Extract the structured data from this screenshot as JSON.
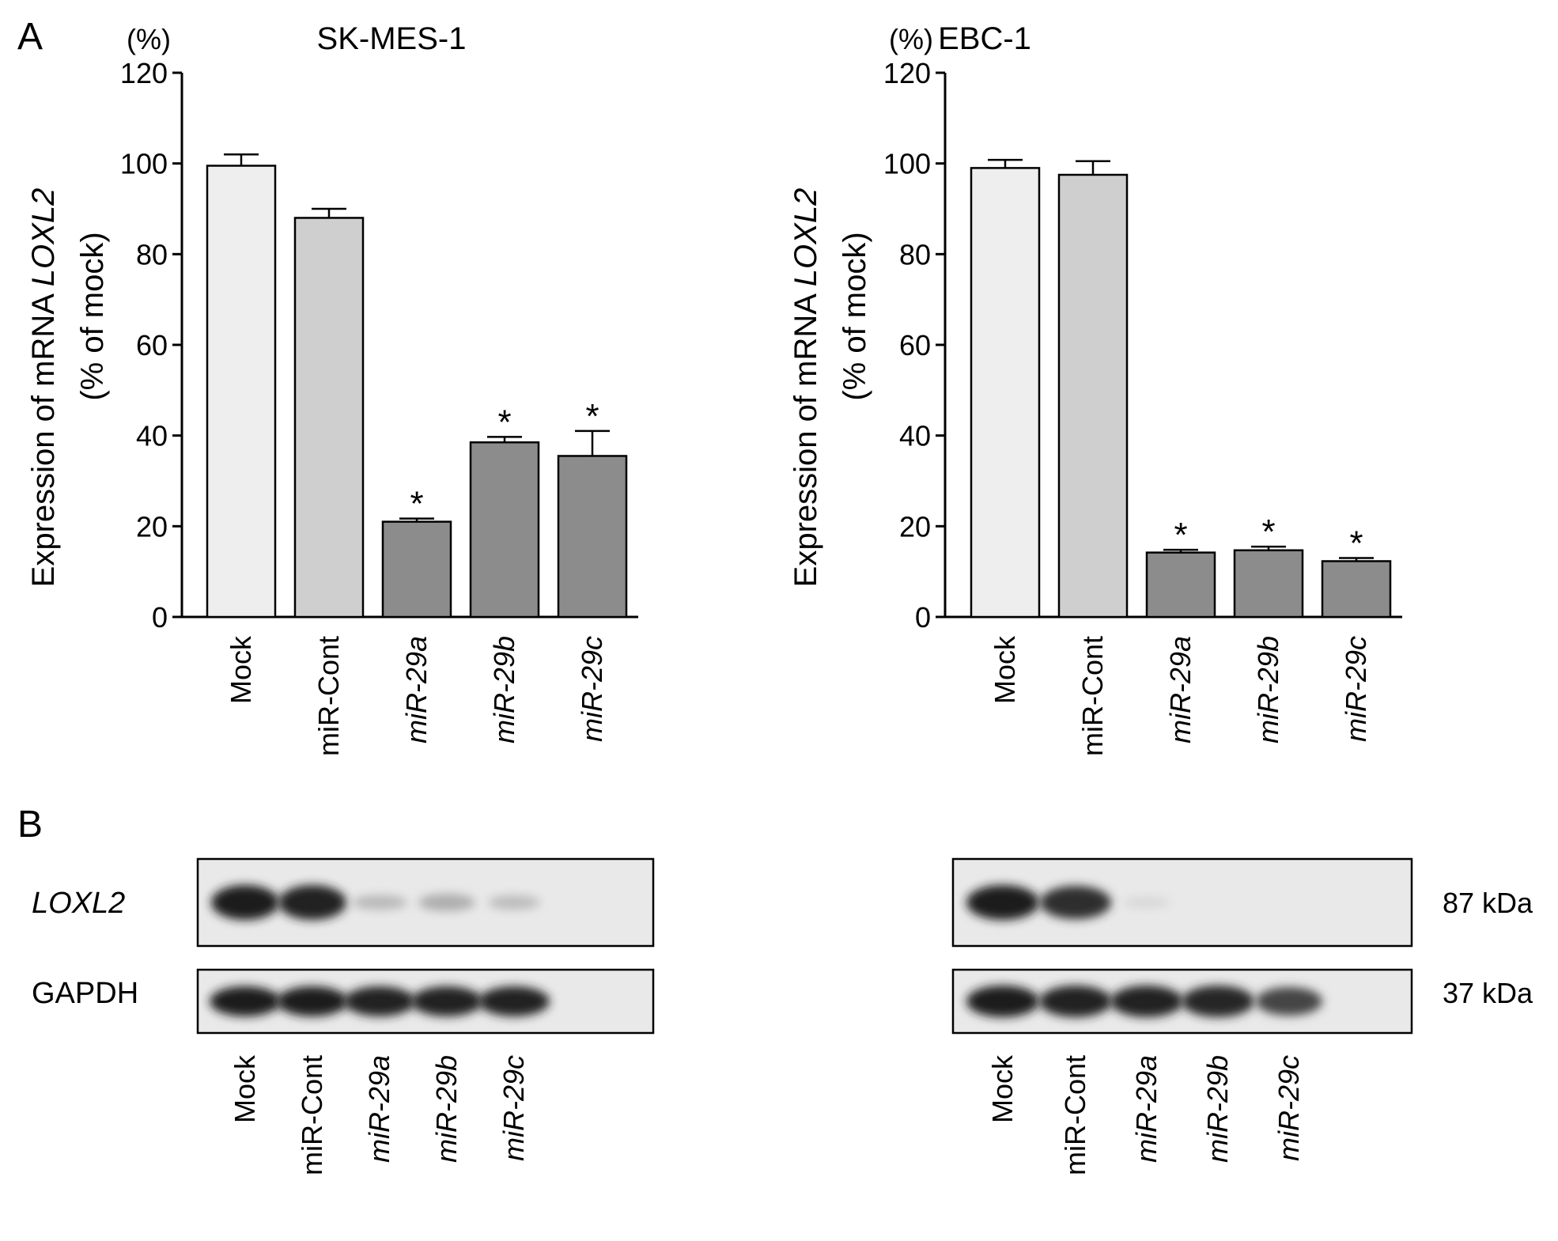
{
  "figure": {
    "panel_a_label": "A",
    "panel_b_label": "B"
  },
  "chart_data": [
    {
      "type": "bar",
      "title": "SK-MES-1",
      "unit_label": "(%)",
      "ylabel_line1_prefix": "Expression of mRNA ",
      "ylabel_line1_gene": "LOXL2",
      "ylabel_line2": "(% of mock)",
      "categories": [
        "Mock",
        "miR-Cont",
        "miR-29a",
        "miR-29b",
        "miR-29c"
      ],
      "italic_categories": [
        false,
        false,
        true,
        true,
        true
      ],
      "values": [
        99.5,
        88,
        21,
        38.5,
        35.5
      ],
      "errors": [
        2.5,
        2,
        0.7,
        1.2,
        5.5
      ],
      "significant": [
        false,
        false,
        true,
        true,
        true
      ],
      "bar_colors": [
        "#eeeeee",
        "#cfcfcf",
        "#8c8c8c",
        "#8c8c8c",
        "#8c8c8c"
      ],
      "ylim": [
        0,
        120
      ],
      "yticks": [
        "0",
        "20",
        "40",
        "60",
        "80",
        "100",
        "120"
      ],
      "significance_marker": "*"
    },
    {
      "type": "bar",
      "title": "EBC-1",
      "unit_label": "(%)",
      "ylabel_line1_prefix": "Expression of mRNA ",
      "ylabel_line1_gene": "LOXL2",
      "ylabel_line2": "(% of mock)",
      "categories": [
        "Mock",
        "miR-Cont",
        "miR-29a",
        "miR-29b",
        "miR-29c"
      ],
      "italic_categories": [
        false,
        false,
        true,
        true,
        true
      ],
      "values": [
        99,
        97.5,
        14.2,
        14.7,
        12.3
      ],
      "errors": [
        1.8,
        3,
        0.6,
        0.8,
        0.7
      ],
      "significant": [
        false,
        false,
        true,
        true,
        true
      ],
      "bar_colors": [
        "#eeeeee",
        "#cfcfcf",
        "#8c8c8c",
        "#8c8c8c",
        "#8c8c8c"
      ],
      "ylim": [
        0,
        120
      ],
      "yticks": [
        "0",
        "20",
        "40",
        "60",
        "80",
        "100",
        "120"
      ],
      "significance_marker": "*"
    }
  ],
  "western_blot": {
    "row_labels": [
      "LOXL2",
      "GAPDH"
    ],
    "kda_labels": [
      "87 kDa",
      "37 kDa"
    ],
    "lane_labels": [
      "Mock",
      "miR-Cont",
      "miR-29a",
      "miR-29b",
      "miR-29c"
    ],
    "italic_lanes": [
      false,
      false,
      true,
      true,
      true
    ],
    "left_loxl2_band_intensity": [
      0.95,
      0.9,
      0.2,
      0.25,
      0.18
    ],
    "left_gapdh_band_intensity": [
      0.95,
      0.95,
      0.9,
      0.9,
      0.9
    ],
    "right_loxl2_band_intensity": [
      0.95,
      0.85,
      0.05,
      0.0,
      0.0
    ],
    "right_gapdh_band_intensity": [
      0.95,
      0.92,
      0.9,
      0.88,
      0.75
    ]
  }
}
